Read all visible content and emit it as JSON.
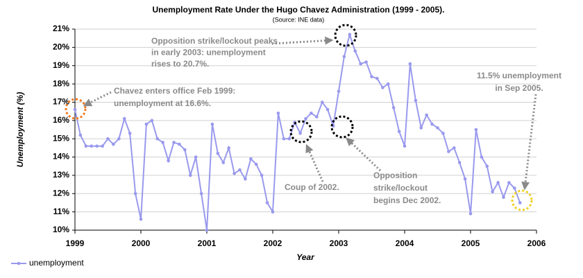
{
  "chart_data": {
    "type": "line",
    "title": "Unemployment Rate Under the Hugo Chavez Administration (1999 - 2005).",
    "subtitle": "(Source: INE data)",
    "x_label": "Year",
    "y_label": "Unemployment (%)",
    "xlim": [
      1999,
      2006
    ],
    "xticks": [
      1999,
      2000,
      2001,
      2002,
      2003,
      2004,
      2005,
      2006
    ],
    "ylim": [
      10,
      21
    ],
    "yticks": [
      {
        "value": 10,
        "label": "10%"
      },
      {
        "value": 11,
        "label": "11%"
      },
      {
        "value": 12,
        "label": "12%"
      },
      {
        "value": 13,
        "label": "13%"
      },
      {
        "value": 14,
        "label": "14%"
      },
      {
        "value": 15,
        "label": "15%"
      },
      {
        "value": 16,
        "label": "16%"
      },
      {
        "value": 17,
        "label": "17%"
      },
      {
        "value": 18,
        "label": "18%"
      },
      {
        "value": 19,
        "label": "19%"
      },
      {
        "value": 20,
        "label": "20%"
      },
      {
        "value": 21,
        "label": "21%"
      }
    ],
    "grid": true,
    "legend": "bottom-left",
    "x": [
      1999,
      1999.083,
      1999.167,
      1999.25,
      1999.333,
      1999.417,
      1999.5,
      1999.583,
      1999.667,
      1999.75,
      1999.833,
      1999.917,
      2000,
      2000.083,
      2000.167,
      2000.25,
      2000.333,
      2000.417,
      2000.5,
      2000.583,
      2000.667,
      2000.75,
      2000.833,
      2000.917,
      2001,
      2001.083,
      2001.167,
      2001.25,
      2001.333,
      2001.417,
      2001.5,
      2001.583,
      2001.667,
      2001.75,
      2001.833,
      2001.917,
      2002,
      2002.083,
      2002.167,
      2002.25,
      2002.333,
      2002.417,
      2002.5,
      2002.583,
      2002.667,
      2002.75,
      2002.833,
      2002.917,
      2003,
      2003.083,
      2003.167,
      2003.25,
      2003.333,
      2003.417,
      2003.5,
      2003.583,
      2003.667,
      2003.75,
      2003.833,
      2003.917,
      2004,
      2004.083,
      2004.167,
      2004.25,
      2004.333,
      2004.417,
      2004.5,
      2004.583,
      2004.667,
      2004.75,
      2004.833,
      2004.917,
      2005,
      2005.083,
      2005.167,
      2005.25,
      2005.333,
      2005.417,
      2005.5,
      2005.583,
      2005.667,
      2005.75
    ],
    "series": [
      {
        "name": "unemployment",
        "color": "#9999ee",
        "values": [
          16.6,
          15.2,
          14.6,
          14.6,
          14.6,
          14.6,
          15.0,
          14.7,
          15.0,
          16.1,
          15.3,
          12.0,
          10.6,
          15.8,
          16.0,
          15.0,
          14.8,
          13.8,
          14.8,
          14.7,
          14.4,
          13.0,
          14.0,
          12.0,
          10.0,
          15.8,
          14.2,
          13.7,
          14.5,
          13.1,
          13.3,
          12.8,
          13.9,
          13.6,
          13.0,
          11.5,
          11.0,
          16.4,
          15.0,
          15.0,
          15.9,
          15.3,
          16.1,
          16.4,
          16.2,
          17.0,
          16.6,
          15.7,
          17.6,
          19.5,
          20.7,
          19.8,
          19.1,
          19.2,
          18.4,
          18.3,
          17.8,
          18.0,
          16.7,
          15.4,
          14.6,
          19.1,
          17.1,
          15.6,
          16.3,
          15.8,
          15.6,
          15.3,
          14.3,
          14.5,
          13.7,
          12.8,
          10.9,
          15.5,
          14.0,
          13.5,
          12.1,
          12.6,
          11.8,
          12.6,
          12.3,
          11.5
        ]
      }
    ],
    "annotations": [
      {
        "lines": [
          "Opposition strike/lockout peaks",
          "in early 2003: unemployment",
          "rises to 20.7%."
        ]
      },
      {
        "lines": [
          "Chavez enters office Feb 1999:",
          "unemployment at 16.6%."
        ]
      },
      {
        "lines": [
          "Coup of 2002."
        ]
      },
      {
        "lines": [
          "Opposition",
          "strike/lockout",
          "begins Dec 2002."
        ]
      },
      {
        "lines": [
          "11.5% unemployment",
          "in Sep 2005."
        ]
      }
    ]
  }
}
